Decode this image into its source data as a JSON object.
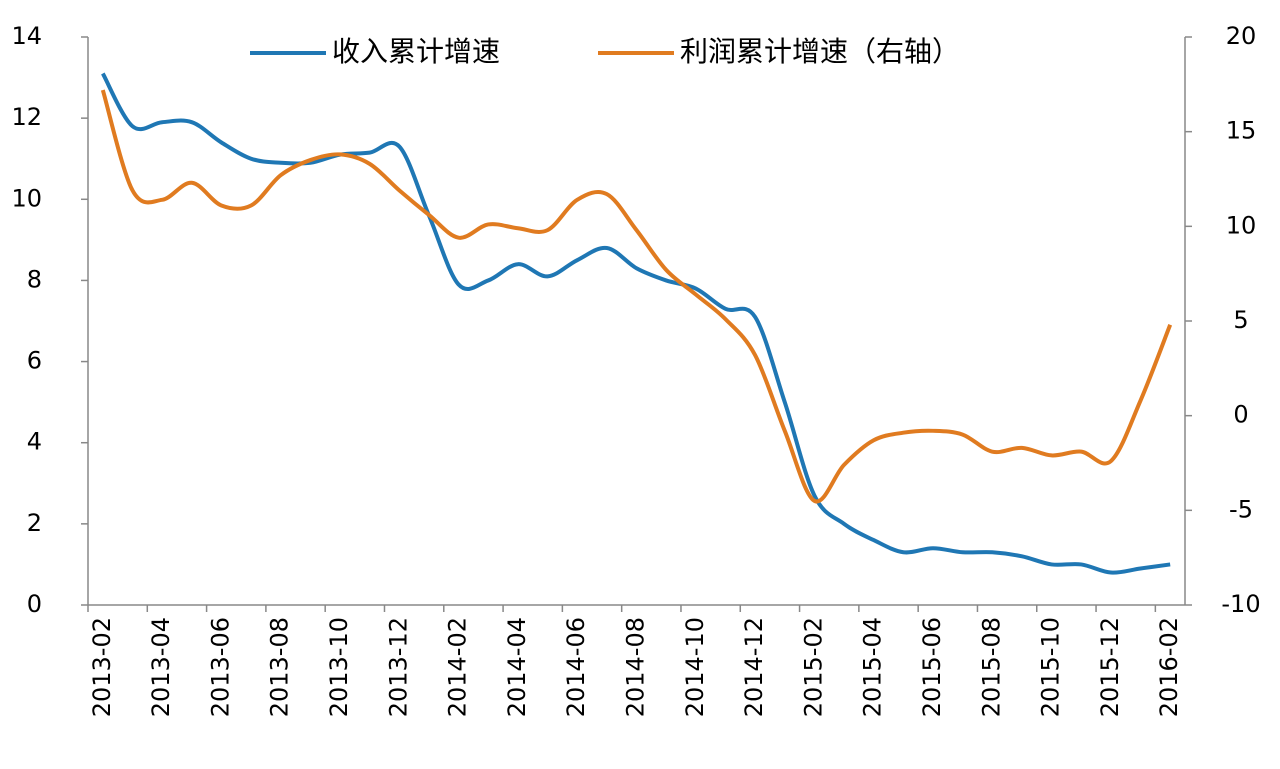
{
  "chart_data": {
    "type": "line",
    "categories": [
      "2013-02",
      null,
      "2013-04",
      null,
      "2013-06",
      null,
      "2013-08",
      null,
      "2013-10",
      null,
      "2013-12",
      null,
      "2014-02",
      null,
      "2014-04",
      null,
      "2014-06",
      null,
      "2014-08",
      null,
      "2014-10",
      null,
      "2014-12",
      null,
      "2015-02",
      null,
      "2015-04",
      null,
      "2015-06",
      null,
      "2015-08",
      null,
      "2015-10",
      null,
      "2015-12",
      null,
      "2016-02"
    ],
    "series": [
      {
        "name": "收入累计增速",
        "color": "#1f77b4",
        "values": [
          13.1,
          11.8,
          11.9,
          11.9,
          11.4,
          11.0,
          10.9,
          10.9,
          11.1,
          11.15,
          11.3,
          9.6,
          7.9,
          8.0,
          8.4,
          8.1,
          8.5,
          8.8,
          8.3,
          8.0,
          7.8,
          7.3,
          7.1,
          5.0,
          2.7,
          2.0,
          1.6,
          1.3,
          1.4,
          1.3,
          1.3,
          1.2,
          1.0,
          1.0,
          0.8,
          0.9,
          1.0
        ]
      },
      {
        "name": "利润累计增速（右轴）",
        "color": "#e07b20",
        "axis": "y2",
        "values": [
          17.2,
          11.9,
          11.4,
          12.3,
          11.1,
          11.1,
          12.7,
          13.5,
          13.8,
          13.3,
          11.9,
          10.6,
          9.4,
          10.1,
          9.9,
          9.8,
          11.4,
          11.7,
          9.8,
          7.7,
          6.4,
          5.1,
          3.2,
          -0.8,
          -4.5,
          -2.6,
          -1.3,
          -0.9,
          -0.8,
          -1.0,
          -1.9,
          -1.7,
          -2.1,
          -1.9,
          -2.4,
          0.8,
          4.8
        ]
      }
    ],
    "ylim": [
      0,
      14
    ],
    "yticks": [
      0,
      2,
      4,
      6,
      8,
      10,
      12,
      14
    ],
    "y2lim": [
      -10,
      20
    ],
    "y2ticks": [
      -10,
      -5,
      0,
      5,
      10,
      15,
      20
    ]
  }
}
